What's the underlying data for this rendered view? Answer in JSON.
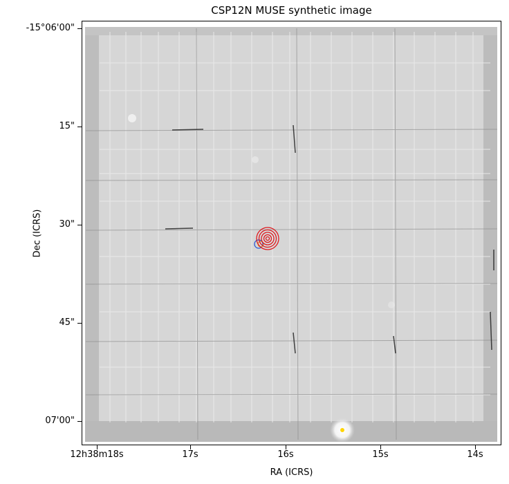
{
  "title": "CSP12N MUSE synthetic image",
  "axes": {
    "xlabel": "RA (ICRS)",
    "ylabel": "Dec (ICRS)",
    "yticks": [
      "-15°06'00\"",
      "15\"",
      "30\"",
      "45\"",
      "07'00\""
    ],
    "xticks": [
      "12h38m18s",
      "17s",
      "16s",
      "15s",
      "14s"
    ]
  },
  "markers": {
    "red_circle_count": 5,
    "red_color": "#e0191e",
    "blue_color": "#1f4fd6",
    "yellow_color": "#ffd400"
  }
}
